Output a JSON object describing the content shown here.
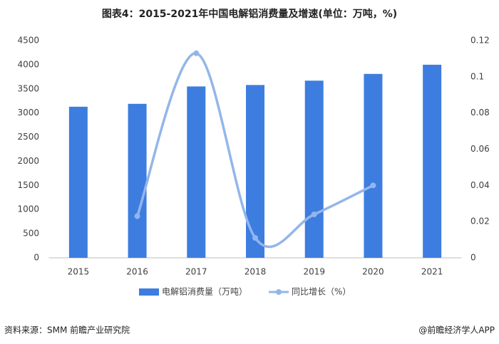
{
  "chart_data": {
    "type": "bar_line",
    "title": "图表4：2015-2021年中国电解铝消费量及增速(单位：万吨，%)",
    "categories": [
      "2015",
      "2016",
      "2017",
      "2018",
      "2019",
      "2020",
      "2021"
    ],
    "series": [
      {
        "name": "电解铝消费量（万吨）",
        "type": "bar",
        "color": "#3d7de0",
        "values": [
          3130,
          3190,
          3550,
          3580,
          3670,
          3810,
          4000
        ]
      },
      {
        "name": "同比增长（%）",
        "type": "line",
        "axis": "y2",
        "color": "#93b6ea",
        "smooth": true,
        "values": [
          null,
          0.023,
          0.113,
          0.011,
          0.024,
          0.04,
          null
        ]
      }
    ],
    "ylim": [
      0,
      4500
    ],
    "yticks": [
      0,
      500,
      1000,
      1500,
      2000,
      2500,
      3000,
      3500,
      4000,
      4500
    ],
    "y2lim": [
      0,
      0.12
    ],
    "y2ticks": [
      0,
      0.02,
      0.04,
      0.06,
      0.08,
      0.1,
      0.12
    ],
    "grid": false,
    "legend": "bottom",
    "source": "资料来源：SMM 前瞻产业研究院",
    "credit": "@前瞻经济学人APP"
  }
}
